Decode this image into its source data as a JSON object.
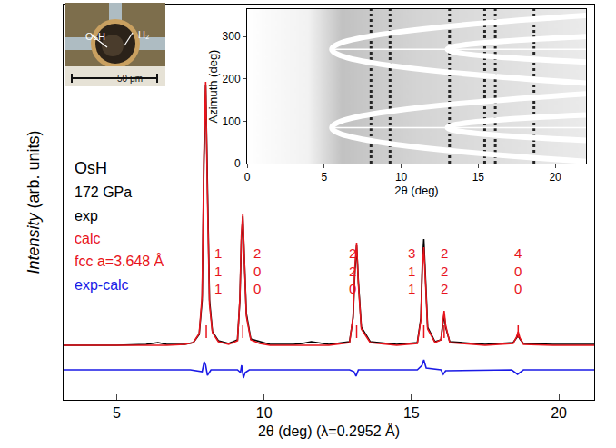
{
  "chart_data": {
    "type": "line",
    "xlabel": "2θ (deg) (λ=0.2952 Å)",
    "ylabel": "Intensity (arb. units)",
    "xlim": [
      3.2,
      21.2
    ],
    "xticks": [
      5,
      10,
      15,
      20
    ],
    "ylim": [
      0,
      435
    ],
    "yticks": [],
    "tick_labels": "x",
    "series": [
      {
        "name": "exp",
        "color": "#000000",
        "label_x": 3.5,
        "label_y": 203,
        "x": [
          3.2,
          4,
          5,
          6,
          6.4,
          6.7,
          7.3,
          7.6,
          7.8,
          7.9,
          7.96,
          8.02,
          8.08,
          8.15,
          8.25,
          8.45,
          8.8,
          9.1,
          9.18,
          9.23,
          9.28,
          9.33,
          9.4,
          9.55,
          9.85,
          10.2,
          11,
          11.3,
          11.6,
          12.2,
          12.9,
          13.02,
          13.08,
          13.14,
          13.2,
          13.3,
          13.6,
          14.5,
          15.2,
          15.32,
          15.37,
          15.42,
          15.47,
          15.55,
          15.8,
          16.0,
          16.06,
          16.11,
          16.16,
          16.3,
          17.5,
          18.45,
          18.56,
          18.62,
          18.68,
          18.8,
          19.8,
          21.2
        ],
        "values": [
          60,
          60,
          60,
          61,
          63,
          61,
          61,
          63,
          72,
          110,
          260,
          347,
          230,
          110,
          75,
          65,
          62,
          66,
          110,
          175,
          202,
          160,
          95,
          67,
          64,
          61,
          61,
          62,
          64,
          61,
          64,
          90,
          140,
          170,
          130,
          80,
          64,
          61,
          63,
          90,
          150,
          177,
          140,
          80,
          64,
          66,
          82,
          94,
          80,
          64,
          61,
          63,
          68,
          71,
          67,
          62,
          61,
          61
        ]
      },
      {
        "name": "calc",
        "color": "#e8141c",
        "label_x": 3.5,
        "label_y": 178,
        "x": [
          3.2,
          4,
          5,
          6,
          6.4,
          6.7,
          7.3,
          7.6,
          7.8,
          7.9,
          7.96,
          8.02,
          8.08,
          8.15,
          8.25,
          8.45,
          8.8,
          9.1,
          9.18,
          9.23,
          9.28,
          9.33,
          9.4,
          9.55,
          9.85,
          10.2,
          11,
          11.3,
          11.6,
          12.2,
          12.9,
          13.02,
          13.08,
          13.14,
          13.2,
          13.3,
          13.6,
          14.5,
          15.2,
          15.32,
          15.37,
          15.42,
          15.47,
          15.55,
          15.8,
          16.0,
          16.06,
          16.11,
          16.16,
          16.3,
          17.5,
          18.45,
          18.56,
          18.62,
          18.68,
          18.8,
          19.8,
          21.2
        ],
        "values": [
          60,
          60,
          60,
          60,
          60,
          60,
          61,
          63,
          73,
          115,
          270,
          350,
          225,
          105,
          74,
          64,
          61,
          65,
          112,
          180,
          205,
          155,
          92,
          66,
          62,
          60,
          60,
          60,
          60,
          60,
          63,
          92,
          145,
          173,
          127,
          78,
          63,
          60,
          62,
          88,
          145,
          168,
          135,
          78,
          63,
          66,
          84,
          98,
          82,
          63,
          60,
          62,
          69,
          75,
          68,
          61,
          60,
          60
        ]
      },
      {
        "name": "exp-calc",
        "color": "#1a1ae6",
        "label_x": 3.5,
        "label_y": 127,
        "x": [
          3.2,
          7.5,
          7.9,
          7.97,
          8.02,
          8.08,
          8.2,
          9.1,
          9.2,
          9.24,
          9.3,
          9.36,
          9.5,
          12.9,
          13.05,
          13.12,
          13.2,
          15.2,
          15.36,
          15.42,
          15.5,
          16.0,
          16.08,
          16.16,
          18.4,
          18.6,
          18.8,
          21.2
        ],
        "values": [
          33,
          33,
          31,
          42,
          38,
          27,
          33,
          33,
          30,
          38,
          24,
          30,
          33,
          33,
          31,
          26,
          33,
          33,
          38,
          44,
          35,
          33,
          28,
          32,
          33,
          28,
          33,
          33
        ]
      }
    ],
    "annotations": [
      {
        "text": "OsH",
        "x": 3.5,
        "y": 255,
        "color": "#000000"
      },
      {
        "text": "172 GPa",
        "x": 3.5,
        "y": 229,
        "color": "#000000"
      },
      {
        "text": "fcc a=3.648 Å",
        "x": 3.5,
        "y": 153,
        "color": "#e8141c"
      }
    ],
    "reflections": [
      {
        "hkl": "111",
        "x": 8.04,
        "label_x": 8.45
      },
      {
        "hkl": "200",
        "x": 9.28,
        "label_x": 9.75
      },
      {
        "hkl": "220",
        "x": 13.14,
        "label_x": 13.0
      },
      {
        "hkl": "311",
        "x": 15.42,
        "label_x": 15.0
      },
      {
        "hkl": "222",
        "x": 16.11,
        "label_x": 16.11
      },
      {
        "hkl": "400",
        "x": 18.62,
        "label_x": 18.62
      }
    ],
    "inset": {
      "xlabel": "2θ (deg)",
      "ylabel": "Azimuth (deg)",
      "xlim": [
        0,
        22
      ],
      "xticks": [
        0,
        5,
        10,
        15,
        20
      ],
      "ylim": [
        0,
        365
      ],
      "yticks": [
        0,
        100,
        200,
        300
      ]
    },
    "photo": {
      "labels": [
        "OsH",
        "H₂"
      ],
      "scale_bar": "50 μm"
    }
  }
}
